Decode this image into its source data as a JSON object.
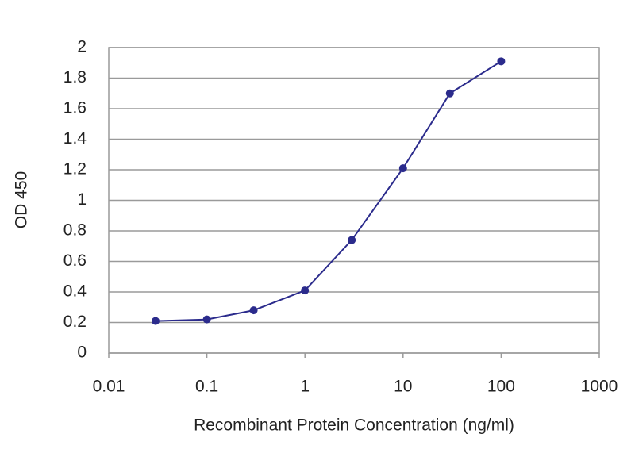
{
  "chart_data": {
    "type": "line",
    "x_label": "Recombinant Protein Concentration (ng/ml)",
    "y_label": "OD 450",
    "x_log": true,
    "x": [
      0.03,
      0.1,
      0.3,
      1,
      3,
      10,
      30,
      100
    ],
    "series": [
      {
        "color": "#2b2b8c",
        "values": [
          0.21,
          0.22,
          0.28,
          0.41,
          0.74,
          1.21,
          1.7,
          1.91
        ]
      }
    ],
    "xlim": [
      0.01,
      1000
    ],
    "xticks": [
      0.01,
      0.1,
      1,
      10,
      100,
      1000
    ],
    "ylim": [
      0,
      2
    ],
    "yticks": [
      0,
      0.2,
      0.4,
      0.6,
      0.8,
      1,
      1.2,
      1.4,
      1.6,
      1.8,
      2
    ],
    "grid": true
  }
}
